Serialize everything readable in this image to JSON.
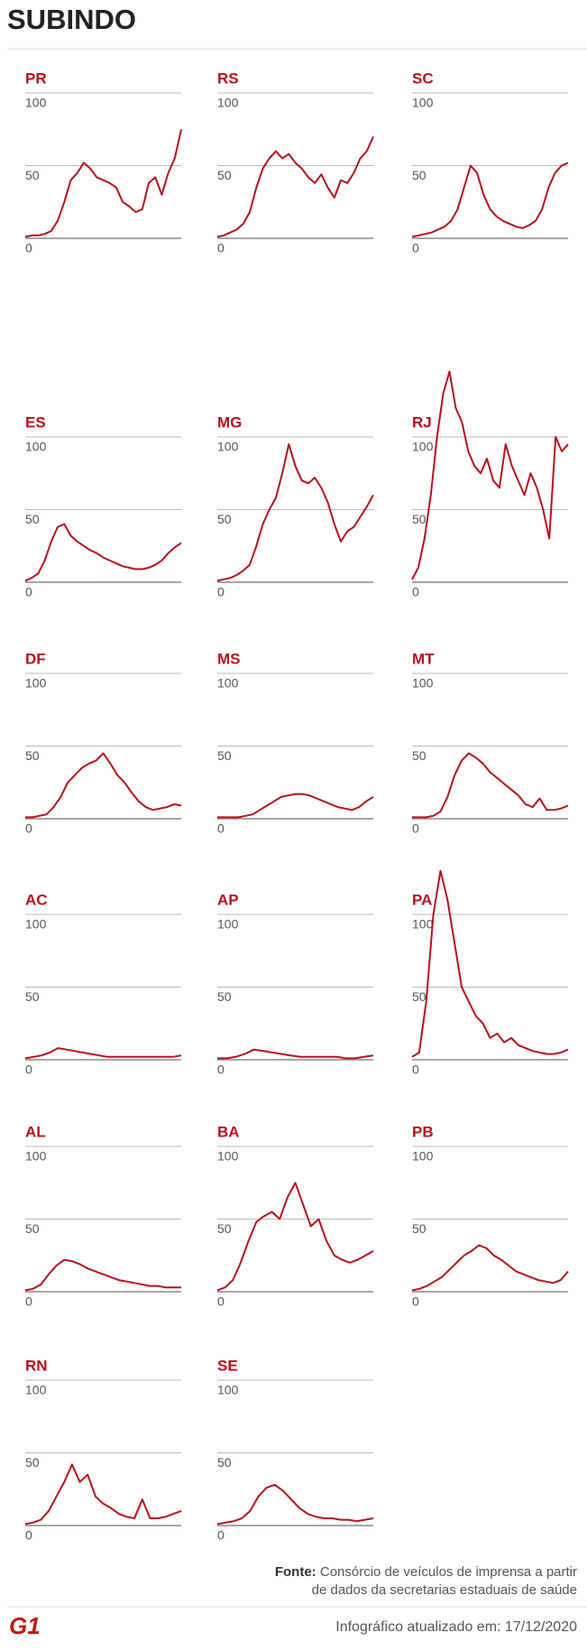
{
  "title": "SUBINDO",
  "chart_data": [
    {
      "type": "line",
      "title": "PR",
      "color": "#b5121b",
      "ylim": [
        0,
        100
      ],
      "yticks": [
        0,
        50,
        100
      ],
      "grid": true,
      "values": [
        1,
        2,
        2,
        3,
        5,
        12,
        25,
        40,
        45,
        52,
        48,
        42,
        40,
        38,
        35,
        25,
        22,
        18,
        20,
        38,
        42,
        30,
        45,
        55,
        75
      ]
    },
    {
      "type": "line",
      "title": "RS",
      "color": "#b5121b",
      "ylim": [
        0,
        100
      ],
      "yticks": [
        0,
        50,
        100
      ],
      "grid": true,
      "values": [
        1,
        2,
        4,
        6,
        10,
        18,
        35,
        48,
        55,
        60,
        55,
        58,
        52,
        48,
        42,
        38,
        44,
        35,
        28,
        40,
        38,
        45,
        55,
        60,
        70
      ]
    },
    {
      "type": "line",
      "title": "SC",
      "color": "#b5121b",
      "ylim": [
        0,
        100
      ],
      "yticks": [
        0,
        50,
        100
      ],
      "grid": true,
      "values": [
        1,
        2,
        3,
        4,
        6,
        8,
        12,
        20,
        35,
        50,
        45,
        30,
        20,
        15,
        12,
        10,
        8,
        7,
        9,
        12,
        20,
        35,
        45,
        50,
        52
      ]
    },
    {
      "type": "line",
      "title": "ES",
      "color": "#b5121b",
      "ylim": [
        0,
        100
      ],
      "yticks": [
        0,
        50,
        100
      ],
      "grid": true,
      "values": [
        1,
        3,
        6,
        15,
        28,
        38,
        40,
        32,
        28,
        25,
        22,
        20,
        17,
        15,
        13,
        11,
        10,
        9,
        9,
        10,
        12,
        15,
        20,
        24,
        27
      ]
    },
    {
      "type": "line",
      "title": "MG",
      "color": "#b5121b",
      "ylim": [
        0,
        100
      ],
      "yticks": [
        0,
        50,
        100
      ],
      "grid": true,
      "values": [
        1,
        2,
        3,
        5,
        8,
        12,
        25,
        40,
        50,
        58,
        75,
        95,
        80,
        70,
        68,
        72,
        65,
        55,
        40,
        28,
        35,
        38,
        45,
        52,
        60
      ]
    },
    {
      "type": "line",
      "title": "RJ",
      "color": "#b5121b",
      "ylim": [
        0,
        100
      ],
      "yticks": [
        0,
        50,
        100
      ],
      "grid": true,
      "values": [
        2,
        10,
        30,
        60,
        100,
        130,
        145,
        120,
        110,
        90,
        80,
        75,
        85,
        70,
        65,
        95,
        80,
        70,
        60,
        75,
        65,
        50,
        30,
        100,
        90,
        95
      ]
    },
    {
      "type": "line",
      "title": "DF",
      "color": "#b5121b",
      "ylim": [
        0,
        100
      ],
      "yticks": [
        0,
        50,
        100
      ],
      "grid": true,
      "values": [
        1,
        1,
        2,
        3,
        8,
        15,
        25,
        30,
        35,
        38,
        40,
        45,
        38,
        30,
        25,
        18,
        12,
        8,
        6,
        7,
        8,
        10,
        9
      ]
    },
    {
      "type": "line",
      "title": "MS",
      "color": "#b5121b",
      "ylim": [
        0,
        100
      ],
      "yticks": [
        0,
        50,
        100
      ],
      "grid": true,
      "values": [
        1,
        1,
        1,
        1,
        2,
        3,
        6,
        9,
        12,
        15,
        16,
        17,
        17,
        16,
        14,
        12,
        10,
        8,
        7,
        6,
        8,
        12,
        15
      ]
    },
    {
      "type": "line",
      "title": "MT",
      "color": "#b5121b",
      "ylim": [
        0,
        100
      ],
      "yticks": [
        0,
        50,
        100
      ],
      "grid": true,
      "values": [
        1,
        1,
        1,
        2,
        5,
        15,
        30,
        40,
        45,
        42,
        38,
        32,
        28,
        24,
        20,
        16,
        10,
        8,
        14,
        6,
        6,
        7,
        9
      ]
    },
    {
      "type": "line",
      "title": "AC",
      "color": "#b5121b",
      "ylim": [
        0,
        100
      ],
      "yticks": [
        0,
        50,
        100
      ],
      "grid": true,
      "values": [
        1,
        2,
        3,
        5,
        8,
        7,
        6,
        5,
        4,
        3,
        2,
        2,
        2,
        2,
        2,
        2,
        2,
        2,
        2,
        3
      ]
    },
    {
      "type": "line",
      "title": "AP",
      "color": "#b5121b",
      "ylim": [
        0,
        100
      ],
      "yticks": [
        0,
        50,
        100
      ],
      "grid": true,
      "values": [
        1,
        1,
        2,
        4,
        7,
        6,
        5,
        4,
        3,
        2,
        2,
        2,
        2,
        2,
        1,
        1,
        2,
        3
      ]
    },
    {
      "type": "line",
      "title": "PA",
      "color": "#b5121b",
      "ylim": [
        0,
        100
      ],
      "yticks": [
        0,
        50,
        100
      ],
      "grid": true,
      "values": [
        2,
        5,
        40,
        100,
        130,
        110,
        80,
        50,
        40,
        30,
        25,
        15,
        18,
        12,
        15,
        10,
        8,
        6,
        5,
        4,
        4,
        5,
        7
      ]
    },
    {
      "type": "line",
      "title": "AL",
      "color": "#b5121b",
      "ylim": [
        0,
        100
      ],
      "yticks": [
        0,
        50,
        100
      ],
      "grid": true,
      "values": [
        1,
        2,
        5,
        12,
        18,
        22,
        21,
        19,
        16,
        14,
        12,
        10,
        8,
        7,
        6,
        5,
        4,
        4,
        3,
        3,
        3
      ]
    },
    {
      "type": "line",
      "title": "BA",
      "color": "#b5121b",
      "ylim": [
        0,
        100
      ],
      "yticks": [
        0,
        50,
        100
      ],
      "grid": true,
      "values": [
        1,
        3,
        8,
        20,
        35,
        48,
        52,
        55,
        50,
        65,
        75,
        60,
        45,
        50,
        35,
        25,
        22,
        20,
        22,
        25,
        28
      ]
    },
    {
      "type": "line",
      "title": "PB",
      "color": "#b5121b",
      "ylim": [
        0,
        100
      ],
      "yticks": [
        0,
        50,
        100
      ],
      "grid": true,
      "values": [
        1,
        2,
        4,
        7,
        10,
        15,
        20,
        25,
        28,
        32,
        30,
        25,
        22,
        18,
        14,
        12,
        10,
        8,
        7,
        6,
        8,
        14
      ]
    },
    {
      "type": "line",
      "title": "RN",
      "color": "#b5121b",
      "ylim": [
        0,
        100
      ],
      "yticks": [
        0,
        50,
        100
      ],
      "grid": true,
      "values": [
        1,
        2,
        4,
        10,
        20,
        30,
        42,
        30,
        35,
        20,
        15,
        12,
        8,
        6,
        5,
        18,
        5,
        5,
        6,
        8,
        10
      ]
    },
    {
      "type": "line",
      "title": "SE",
      "color": "#b5121b",
      "ylim": [
        0,
        100
      ],
      "yticks": [
        0,
        50,
        100
      ],
      "grid": true,
      "values": [
        1,
        2,
        3,
        5,
        10,
        20,
        26,
        28,
        24,
        18,
        12,
        8,
        6,
        5,
        5,
        4,
        4,
        3,
        4,
        5
      ]
    }
  ],
  "source": {
    "label": "Fonte:",
    "line1": "Consórcio de veículos de imprensa a partir",
    "line2": "de dados da secretarias estaduais de saúde"
  },
  "updated": "Infográfico atualizado em: 17/12/2020",
  "logo": "G1"
}
